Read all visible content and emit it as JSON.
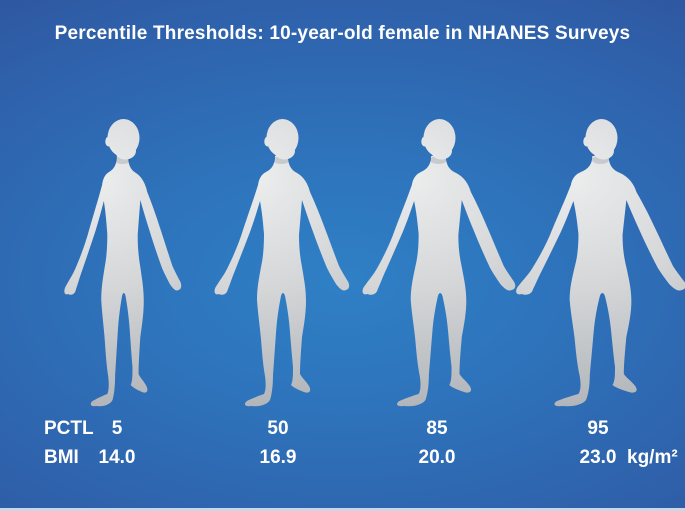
{
  "title": "Percentile Thresholds: 10-year-old female in NHANES Surveys",
  "labels": {
    "pctl": "PCTL",
    "bmi": "BMI",
    "unit": "kg/m²"
  },
  "figures": [
    {
      "name": "percentile-5",
      "percentile": "5",
      "bmi": "14.0"
    },
    {
      "name": "percentile-50",
      "percentile": "50",
      "bmi": "16.9"
    },
    {
      "name": "percentile-85",
      "percentile": "85",
      "bmi": "20.0"
    },
    {
      "name": "percentile-95",
      "percentile": "95",
      "bmi": "23.0"
    }
  ],
  "colors": {
    "background_center": "#2f80c6",
    "background_edge": "#2e4f97",
    "text": "#ffffff",
    "body_model_light": "#ecedee",
    "body_model_dark": "#a7abb0"
  },
  "chart_data": {
    "type": "table",
    "title": "Percentile Thresholds: 10-year-old female in NHANES Surveys",
    "columns": [
      "PCTL",
      "BMI (kg/m²)"
    ],
    "rows": [
      [
        "5",
        "14.0"
      ],
      [
        "50",
        "16.9"
      ],
      [
        "85",
        "20.0"
      ],
      [
        "95",
        "23.0"
      ]
    ]
  }
}
